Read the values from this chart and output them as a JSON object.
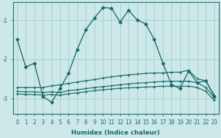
{
  "xlabel": "Humidex (Indice chaleur)",
  "ylabel": "",
  "xlim": [
    -0.5,
    23.5
  ],
  "ylim": [
    -3.4,
    -0.55
  ],
  "background_color": "#cce8e8",
  "grid_color": "#aacfcf",
  "line_color": "#1a6b6b",
  "yticks": [
    -3,
    -2,
    -1
  ],
  "xticks": [
    0,
    1,
    2,
    3,
    4,
    5,
    6,
    7,
    8,
    9,
    10,
    11,
    12,
    13,
    14,
    15,
    16,
    17,
    18,
    19,
    20,
    21,
    22,
    23
  ],
  "series": {
    "main": {
      "x": [
        0,
        1,
        2,
        3,
        4,
        5,
        6,
        7,
        8,
        9,
        10,
        11,
        12,
        13,
        14,
        15,
        16,
        17,
        18,
        19,
        20,
        21,
        22,
        23
      ],
      "y": [
        -1.5,
        -2.2,
        -2.1,
        -2.95,
        -3.1,
        -2.75,
        -2.35,
        -1.75,
        -1.25,
        -0.95,
        -0.68,
        -0.7,
        -1.05,
        -0.75,
        -1.0,
        -1.1,
        -1.5,
        -2.1,
        -2.65,
        -2.75,
        -2.3,
        -2.6,
        -2.55,
        -2.95
      ]
    },
    "upper": {
      "x": [
        0,
        1,
        2,
        3,
        4,
        5,
        6,
        7,
        8,
        9,
        10,
        11,
        12,
        13,
        14,
        15,
        16,
        17,
        18,
        19,
        20,
        21,
        22,
        23
      ],
      "y": [
        -2.72,
        -2.72,
        -2.72,
        -2.72,
        -2.68,
        -2.65,
        -2.62,
        -2.58,
        -2.55,
        -2.52,
        -2.48,
        -2.45,
        -2.42,
        -2.4,
        -2.38,
        -2.36,
        -2.35,
        -2.35,
        -2.33,
        -2.33,
        -2.28,
        -2.5,
        -2.55,
        -2.92
      ]
    },
    "lower": {
      "x": [
        0,
        1,
        2,
        3,
        4,
        5,
        6,
        7,
        8,
        9,
        10,
        11,
        12,
        13,
        14,
        15,
        16,
        17,
        18,
        19,
        20,
        21,
        22,
        23
      ],
      "y": [
        -2.82,
        -2.83,
        -2.83,
        -2.85,
        -2.83,
        -2.85,
        -2.8,
        -2.78,
        -2.75,
        -2.72,
        -2.7,
        -2.68,
        -2.65,
        -2.63,
        -2.61,
        -2.6,
        -2.58,
        -2.57,
        -2.56,
        -2.56,
        -2.56,
        -2.6,
        -2.72,
        -2.98
      ]
    },
    "bottom": {
      "x": [
        0,
        1,
        2,
        3,
        4,
        5,
        6,
        7,
        8,
        9,
        10,
        11,
        12,
        13,
        14,
        15,
        16,
        17,
        18,
        19,
        20,
        21,
        22,
        23
      ],
      "y": [
        -2.88,
        -2.9,
        -2.9,
        -2.92,
        -2.9,
        -2.92,
        -2.88,
        -2.86,
        -2.83,
        -2.8,
        -2.78,
        -2.76,
        -2.74,
        -2.73,
        -2.72,
        -2.71,
        -2.7,
        -2.69,
        -2.69,
        -2.69,
        -2.69,
        -2.72,
        -2.82,
        -3.05
      ]
    }
  }
}
